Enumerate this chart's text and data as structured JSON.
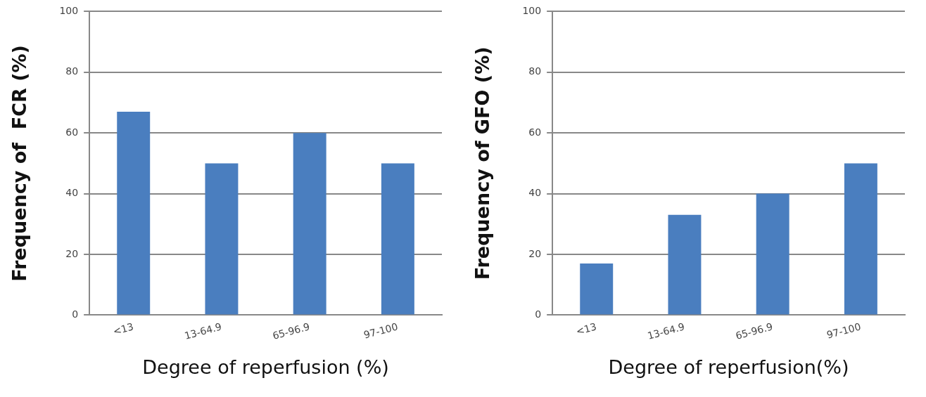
{
  "chart_data": [
    {
      "type": "bar",
      "categories": [
        "<13",
        "13-64.9",
        "65-96.9",
        "97-100"
      ],
      "values": [
        67,
        50,
        60,
        50
      ],
      "color": "#4a7ebf",
      "ylim": [
        0,
        100
      ],
      "yticks": [
        0,
        20,
        40,
        60,
        80,
        100
      ],
      "grid": "y",
      "xlabel": "Degree of reperfusion (%)",
      "ylabel": "Frequency of  FCR (%)"
    },
    {
      "type": "bar",
      "categories": [
        "<13",
        "13-64.9",
        "65-96.9",
        "97-100"
      ],
      "values": [
        17,
        33,
        40,
        50
      ],
      "color": "#4a7ebf",
      "ylim": [
        0,
        100
      ],
      "yticks": [
        0,
        20,
        40,
        60,
        80,
        100
      ],
      "grid": "y",
      "xlabel": "Degree of reperfusion(%)",
      "ylabel": "Frequency of GFO (%)"
    }
  ]
}
